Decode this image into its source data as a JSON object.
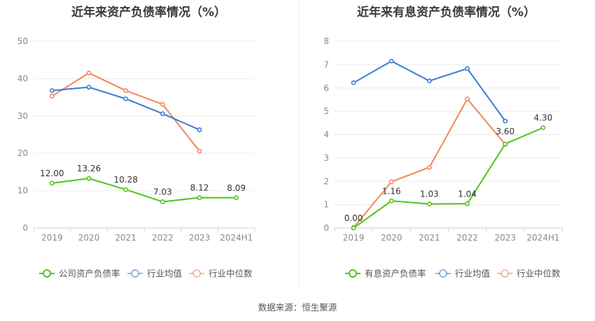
{
  "footer": "数据来源：恒生聚源",
  "chart_data": [
    {
      "type": "line",
      "title": "近年来资产负债率情况（%）",
      "categories": [
        "2019",
        "2020",
        "2021",
        "2022",
        "2023",
        "2024H1"
      ],
      "ylim": [
        0,
        50
      ],
      "yticks": [
        0,
        10,
        20,
        30,
        40,
        50
      ],
      "grid": true,
      "legend": "bottom",
      "series": [
        {
          "name": "公司资产负债率",
          "color": "#52c41a",
          "values": [
            12.0,
            13.26,
            10.28,
            7.03,
            8.12,
            8.09
          ],
          "labels": [
            "12.00",
            "13.26",
            "10.28",
            "7.03",
            "8.12",
            "8.09"
          ]
        },
        {
          "name": "行业均值",
          "color": "#3a7bd5",
          "values": [
            36.8,
            37.7,
            34.6,
            30.6,
            26.3,
            null
          ]
        },
        {
          "name": "行业中位数",
          "color": "#f0875a",
          "values": [
            35.3,
            41.5,
            36.8,
            33.1,
            20.6,
            null
          ]
        }
      ]
    },
    {
      "type": "line",
      "title": "近年来有息资产负债率情况（%）",
      "categories": [
        "2019",
        "2020",
        "2021",
        "2022",
        "2023",
        "2024H1"
      ],
      "ylim": [
        0,
        8
      ],
      "yticks": [
        0,
        1,
        2,
        3,
        4,
        5,
        6,
        7,
        8
      ],
      "grid": true,
      "legend": "bottom",
      "series": [
        {
          "name": "有息资产负债率",
          "color": "#52c41a",
          "values": [
            0.0,
            1.16,
            1.03,
            1.04,
            3.6,
            4.3
          ],
          "labels": [
            "0.00",
            "1.16",
            "1.03",
            "1.04",
            "3.60",
            "4.30"
          ]
        },
        {
          "name": "行业均值",
          "color": "#3a7bd5",
          "values": [
            6.22,
            7.15,
            6.3,
            6.83,
            4.58,
            null
          ]
        },
        {
          "name": "行业中位数",
          "color": "#f0875a",
          "values": [
            0.02,
            1.98,
            2.6,
            5.53,
            3.58,
            null
          ]
        }
      ]
    }
  ]
}
